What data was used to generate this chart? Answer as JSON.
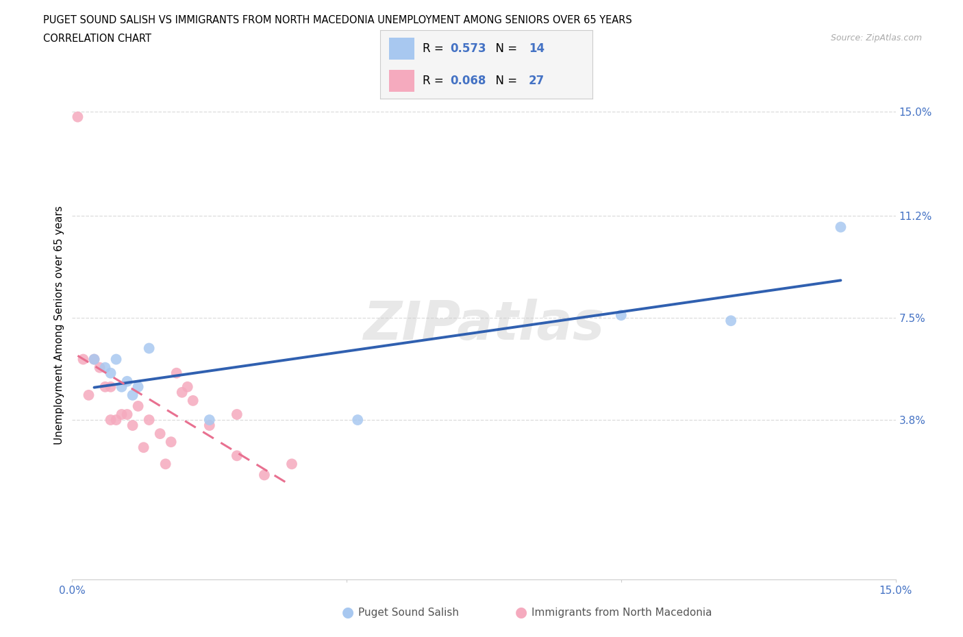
{
  "title_line1": "PUGET SOUND SALISH VS IMMIGRANTS FROM NORTH MACEDONIA UNEMPLOYMENT AMONG SENIORS OVER 65 YEARS",
  "title_line2": "CORRELATION CHART",
  "source": "Source: ZipAtlas.com",
  "ylabel": "Unemployment Among Seniors over 65 years",
  "xlim": [
    0,
    0.15
  ],
  "ylim": [
    -0.02,
    0.165
  ],
  "xtick_positions": [
    0.0,
    0.05,
    0.1,
    0.15
  ],
  "xtick_labels": [
    "0.0%",
    "",
    "",
    "15.0%"
  ],
  "ytick_positions": [
    0.038,
    0.075,
    0.112,
    0.15
  ],
  "ytick_labels": [
    "3.8%",
    "7.5%",
    "11.2%",
    "15.0%"
  ],
  "watermark": "ZIPatlas",
  "blue_fill": "#A8C8F0",
  "pink_fill": "#F5AABE",
  "blue_line": "#3060B0",
  "pink_line": "#E87090",
  "tick_label_color": "#4472C4",
  "grid_color": "#DCDCDC",
  "R_blue": 0.573,
  "N_blue": 14,
  "R_pink": 0.068,
  "N_pink": 27,
  "blue_x": [
    0.004,
    0.006,
    0.007,
    0.008,
    0.009,
    0.01,
    0.011,
    0.012,
    0.014,
    0.025,
    0.052,
    0.1,
    0.12,
    0.14
  ],
  "blue_y": [
    0.06,
    0.057,
    0.055,
    0.06,
    0.05,
    0.052,
    0.047,
    0.05,
    0.064,
    0.038,
    0.038,
    0.076,
    0.074,
    0.108
  ],
  "pink_x": [
    0.001,
    0.002,
    0.003,
    0.004,
    0.005,
    0.006,
    0.007,
    0.007,
    0.008,
    0.009,
    0.01,
    0.011,
    0.012,
    0.013,
    0.014,
    0.016,
    0.017,
    0.018,
    0.019,
    0.02,
    0.021,
    0.022,
    0.025,
    0.03,
    0.03,
    0.035,
    0.04
  ],
  "pink_y": [
    0.148,
    0.06,
    0.047,
    0.06,
    0.057,
    0.05,
    0.05,
    0.038,
    0.038,
    0.04,
    0.04,
    0.036,
    0.043,
    0.028,
    0.038,
    0.033,
    0.022,
    0.03,
    0.055,
    0.048,
    0.05,
    0.045,
    0.036,
    0.025,
    0.04,
    0.018,
    0.022
  ],
  "background": "#FFFFFF",
  "legend_bg": "#F5F5F5",
  "legend_border": "#CCCCCC"
}
